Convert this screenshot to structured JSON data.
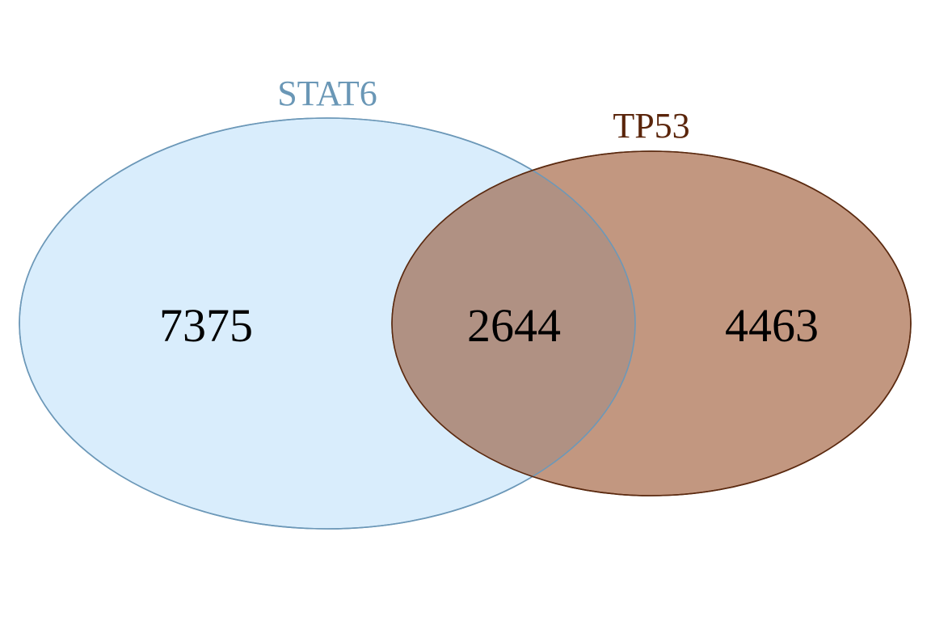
{
  "sets": [
    {
      "id": "a",
      "label": "STAT6",
      "fill": "#d9edfc",
      "stroke": "#6c98b8",
      "label_color": "#6a97b6"
    },
    {
      "id": "b",
      "label": "TP53",
      "fill": "#c29780",
      "stroke": "#5b2a10",
      "label_color": "#5a250b"
    }
  ],
  "overlap_fill": "#b09183",
  "regions": {
    "a_only": "7375",
    "a_and_b": "2644",
    "b_only": "4463"
  }
}
